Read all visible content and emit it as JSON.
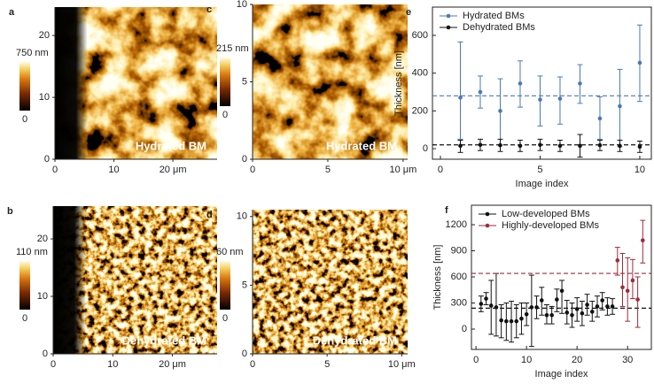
{
  "panels": [
    {
      "letter": "a",
      "overlay": "Hydrated BM",
      "xlim": [
        0,
        27.5
      ],
      "ylim": [
        0,
        24.6
      ],
      "xticks": [
        0,
        10,
        {
          "value": 20,
          "label": "20 μm"
        }
      ],
      "yticks": [
        0,
        10,
        20
      ],
      "colorbar_ticks": [
        0,
        {
          "value": 750,
          "label": "750 nm"
        }
      ]
    },
    {
      "letter": "c",
      "overlay": "Hydrated BM",
      "xlim": [
        0,
        10.3
      ],
      "ylim": [
        0,
        10
      ],
      "xticks": [
        0,
        5,
        {
          "value": 10,
          "label": "10 μm"
        }
      ],
      "yticks": [
        0,
        5,
        10
      ],
      "colorbar_ticks": [
        0,
        {
          "value": 215,
          "label": "215 nm"
        }
      ]
    },
    {
      "letter": "b",
      "overlay": "Dehydrated BM",
      "xlim": [
        0,
        27.5
      ],
      "ylim": [
        0,
        25.7
      ],
      "xticks": [
        0,
        10,
        {
          "value": 20,
          "label": "20 μm"
        }
      ],
      "yticks": [
        0,
        10,
        20
      ],
      "colorbar_ticks": [
        0,
        {
          "value": 110,
          "label": "110 nm"
        }
      ]
    },
    {
      "letter": "d",
      "overlay": "Dehydrated BM",
      "xlim": [
        0,
        10.4
      ],
      "ylim": [
        0,
        10.5
      ],
      "xticks": [
        0,
        5,
        {
          "value": 10,
          "label": "10 μm"
        }
      ],
      "yticks": [
        0,
        5,
        10
      ],
      "colorbar_ticks": [
        0,
        {
          "value": 60,
          "label": "60 nm"
        }
      ]
    }
  ],
  "chart_data": [
    {
      "type": "errorbar",
      "letter": "e",
      "x_label": "Image index",
      "y_label": "Thickness [nm]",
      "xlim": [
        -0.4,
        10.58
      ],
      "ylim": [
        -56,
        750
      ],
      "xticks": [
        0,
        5,
        10
      ],
      "yticks": [
        0,
        200,
        400,
        600
      ],
      "series": [
        {
          "name": "Hydrated BMs",
          "color": "#4a78b8",
          "mean": 280,
          "x": [
            1,
            2,
            3,
            4,
            5,
            6,
            7,
            8,
            9,
            10
          ],
          "values": [
            270,
            300,
            200,
            345,
            260,
            265,
            345,
            160,
            225,
            455
          ],
          "lower": [
            50,
            215,
            20,
            220,
            120,
            130,
            240,
            50,
            10,
            250
          ],
          "upper": [
            565,
            385,
            370,
            465,
            385,
            380,
            445,
            275,
            420,
            655
          ]
        },
        {
          "name": "Dehydrated BMs",
          "color": "#111111",
          "mean": 20,
          "x": [
            1,
            2,
            3,
            4,
            5,
            6,
            7,
            8,
            9,
            10
          ],
          "values": [
            15,
            20,
            18,
            15,
            20,
            15,
            15,
            18,
            15,
            10
          ],
          "lower": [
            -20,
            -10,
            -15,
            -15,
            -10,
            -15,
            -45,
            -10,
            -15,
            -20
          ],
          "upper": [
            45,
            50,
            50,
            45,
            50,
            45,
            75,
            45,
            45,
            40
          ]
        }
      ]
    },
    {
      "type": "errorbar",
      "letter": "f",
      "x_label": "Image index",
      "y_label": "Thickness [nm]",
      "xlim": [
        -0.9,
        34.7
      ],
      "ylim": [
        -234,
        1424
      ],
      "xticks": [
        0,
        10,
        20,
        30
      ],
      "yticks": [
        0,
        300,
        600,
        900,
        1200
      ],
      "series": [
        {
          "name": "Low-developed BMs",
          "color": "#111111",
          "mean": 240,
          "x": [
            1,
            2,
            3,
            4,
            5,
            6,
            7,
            8,
            9,
            10,
            11,
            12,
            13,
            14,
            15,
            16,
            17,
            18,
            19,
            20,
            21,
            22,
            23,
            24,
            25,
            26,
            27
          ],
          "values": [
            290,
            350,
            270,
            250,
            100,
            90,
            90,
            90,
            120,
            170,
            250,
            250,
            330,
            160,
            160,
            340,
            440,
            190,
            160,
            230,
            180,
            280,
            200,
            260,
            330,
            260,
            260
          ],
          "lower": [
            200,
            280,
            -60,
            -80,
            -100,
            -130,
            -150,
            -100,
            -60,
            40,
            -200,
            120,
            160,
            60,
            60,
            200,
            180,
            60,
            20,
            90,
            40,
            160,
            90,
            140,
            220,
            160,
            170
          ],
          "upper": [
            380,
            420,
            560,
            640,
            280,
            300,
            320,
            280,
            300,
            300,
            620,
            380,
            480,
            280,
            260,
            460,
            560,
            330,
            300,
            360,
            320,
            400,
            320,
            380,
            420,
            360,
            350
          ]
        },
        {
          "name": "Highly-developed BMs",
          "color": "#9e2a3a",
          "mean": 640,
          "x": [
            28,
            29,
            30,
            31,
            32,
            33
          ],
          "values": [
            790,
            480,
            440,
            560,
            340,
            1020
          ],
          "lower": [
            620,
            260,
            90,
            350,
            20,
            760
          ],
          "upper": [
            940,
            870,
            820,
            800,
            600,
            1250
          ]
        }
      ]
    }
  ]
}
